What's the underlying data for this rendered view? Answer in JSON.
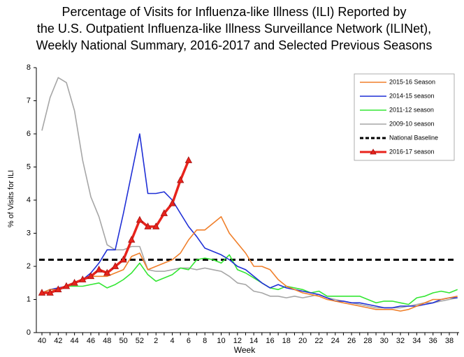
{
  "chart_data": {
    "type": "line",
    "title_lines": [
      "Percentage of Visits for Influenza-like Illness (ILI) Reported by",
      "the U.S. Outpatient Influenza-like Illness Surveillance Network (ILINet),",
      "Weekly National Summary, 2016-2017 and Selected Previous Seasons"
    ],
    "xlabel": "Week",
    "ylabel": "% of Visits for ILI",
    "categories": [
      "40",
      null,
      "42",
      null,
      "44",
      null,
      "46",
      null,
      "48",
      null,
      "50",
      null,
      "52",
      null,
      "2",
      null,
      "4",
      null,
      "6",
      null,
      "8",
      null,
      "10",
      null,
      "12",
      null,
      "14",
      null,
      "16",
      null,
      "18",
      null,
      "20",
      null,
      "22",
      null,
      "24",
      null,
      "26",
      null,
      "28",
      null,
      "30",
      null,
      "32",
      null,
      "34",
      null,
      "36",
      null,
      "38",
      null
    ],
    "ylim": [
      0,
      8
    ],
    "yticks": [
      0,
      1,
      2,
      3,
      4,
      5,
      6,
      7,
      8
    ],
    "baseline": {
      "name": "National Baseline",
      "value": 2.2,
      "color": "#000000"
    },
    "series": [
      {
        "name": "2015-16 Season",
        "color": "#f07f2a",
        "values": [
          1.2,
          1.3,
          1.3,
          1.4,
          1.5,
          1.6,
          1.7,
          1.7,
          1.7,
          1.8,
          1.9,
          2.3,
          2.4,
          1.9,
          2.0,
          2.1,
          2.2,
          2.4,
          2.8,
          3.1,
          3.1,
          3.3,
          3.5,
          3.0,
          2.7,
          2.4,
          2.0,
          2.0,
          1.9,
          1.6,
          1.4,
          1.3,
          1.2,
          1.15,
          1.1,
          1.0,
          0.95,
          0.9,
          0.85,
          0.8,
          0.75,
          0.7,
          0.7,
          0.7,
          0.65,
          0.7,
          0.8,
          0.9,
          1.0,
          1.0,
          1.05,
          1.1
        ]
      },
      {
        "name": "2014-15 season",
        "color": "#1f2fd6",
        "values": [
          1.2,
          1.3,
          1.35,
          1.4,
          1.5,
          1.6,
          1.8,
          2.1,
          2.5,
          2.5,
          3.6,
          4.8,
          6.0,
          4.2,
          4.2,
          4.25,
          4.0,
          3.6,
          3.2,
          2.9,
          2.55,
          2.45,
          2.35,
          2.2,
          2.0,
          1.9,
          1.7,
          1.5,
          1.35,
          1.45,
          1.35,
          1.3,
          1.25,
          1.2,
          1.15,
          1.05,
          0.95,
          0.95,
          0.9,
          0.9,
          0.85,
          0.8,
          0.75,
          0.75,
          0.8,
          0.8,
          0.8,
          0.85,
          0.9,
          1.0,
          1.05,
          1.05
        ]
      },
      {
        "name": "2011-12 season",
        "color": "#33e633",
        "values": [
          1.2,
          1.3,
          1.3,
          1.4,
          1.4,
          1.4,
          1.45,
          1.5,
          1.35,
          1.45,
          1.6,
          1.8,
          2.1,
          1.75,
          1.55,
          1.65,
          1.75,
          1.95,
          1.9,
          2.2,
          2.25,
          2.2,
          2.1,
          2.35,
          1.9,
          1.8,
          1.65,
          1.5,
          1.35,
          1.3,
          1.4,
          1.35,
          1.3,
          1.2,
          1.25,
          1.1,
          1.1,
          1.1,
          1.1,
          1.1,
          1.0,
          0.9,
          0.95,
          0.95,
          0.9,
          0.85,
          1.05,
          1.1,
          1.2,
          1.25,
          1.2,
          1.3
        ]
      },
      {
        "name": "2009-10 season",
        "color": "#a6a6a6",
        "values": [
          6.1,
          7.1,
          7.7,
          7.55,
          6.7,
          5.2,
          4.1,
          3.5,
          2.65,
          2.5,
          2.5,
          2.6,
          2.6,
          1.9,
          1.85,
          1.85,
          1.9,
          1.95,
          1.95,
          1.9,
          1.95,
          1.9,
          1.85,
          1.7,
          1.5,
          1.45,
          1.25,
          1.2,
          1.1,
          1.1,
          1.05,
          1.1,
          1.05,
          1.1,
          1.15,
          1.05,
          1.0,
          0.95,
          0.9,
          0.85,
          0.8,
          0.75,
          0.75,
          0.75,
          0.75,
          0.8,
          0.85,
          0.9,
          0.9,
          0.95,
          1.0,
          1.05
        ]
      },
      {
        "name": "2016-17 season",
        "color": "#e8231c",
        "marker": "triangle",
        "values": [
          1.2,
          1.2,
          1.3,
          1.4,
          1.5,
          1.6,
          1.7,
          1.9,
          1.8,
          2.0,
          2.2,
          2.8,
          3.4,
          3.2,
          3.2,
          3.6,
          3.9,
          4.6,
          5.2,
          null,
          null,
          null,
          null,
          null,
          null,
          null,
          null,
          null,
          null,
          null,
          null,
          null,
          null,
          null,
          null,
          null,
          null,
          null,
          null,
          null,
          null,
          null,
          null,
          null,
          null,
          null,
          null,
          null,
          null,
          null,
          null,
          null
        ]
      }
    ]
  }
}
